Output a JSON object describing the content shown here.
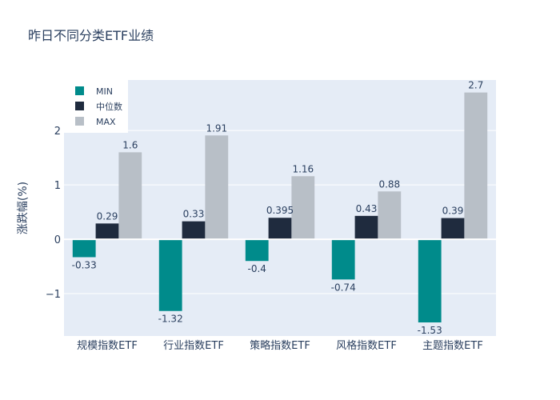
{
  "chart_data": {
    "type": "bar",
    "title": "昨日不同分类ETF业绩",
    "xlabel": "",
    "ylabel": "涨跌幅(%)",
    "ylim": [
      -1.78,
      2.93
    ],
    "yticks": [
      -1,
      0,
      1,
      2
    ],
    "ytick_labels": [
      "−1",
      "0",
      "1",
      "2"
    ],
    "categories": [
      "规模指数ETF",
      "行业指数ETF",
      "策略指数ETF",
      "风格指数ETF",
      "主题指数ETF"
    ],
    "series": [
      {
        "name": "MIN",
        "color": "#008b8b",
        "values": [
          -0.33,
          -1.32,
          -0.4,
          -0.74,
          -1.53
        ],
        "labels": [
          "-0.33",
          "-1.32",
          "-0.4",
          "-0.74",
          "-1.53"
        ]
      },
      {
        "name": "中位数",
        "color": "#1f2b3e",
        "values": [
          0.29,
          0.33,
          0.395,
          0.43,
          0.39
        ],
        "labels": [
          "0.29",
          "0.33",
          "0.395",
          "0.43",
          "0.39"
        ]
      },
      {
        "name": "MAX",
        "color": "#b8bfc7",
        "values": [
          1.6,
          1.91,
          1.16,
          0.88,
          2.7
        ],
        "labels": [
          "1.6",
          "1.91",
          "1.16",
          "0.88",
          "2.7"
        ]
      }
    ],
    "legend_position": "top-left",
    "grid": true,
    "plot_background": "#e5ecf6"
  }
}
